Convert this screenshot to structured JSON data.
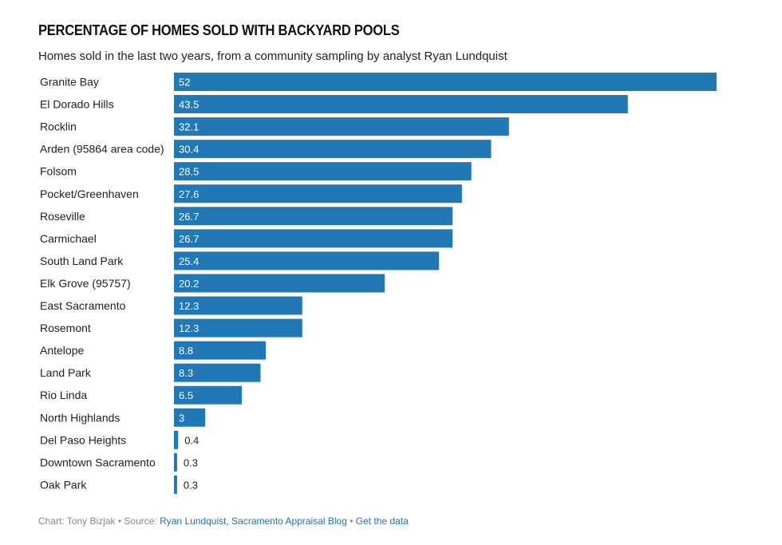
{
  "chart_data": {
    "type": "bar",
    "orientation": "horizontal",
    "title": "PERCENTAGE OF HOMES SOLD WITH BACKYARD POOLS",
    "subtitle": "Homes sold in the last two years, from a community sampling by analyst Ryan Lundquist",
    "bar_color": "#2178b5",
    "xlim": [
      0,
      52
    ],
    "categories": [
      "Granite Bay",
      "El Dorado Hills",
      "Rocklin",
      "Arden (95864 area code)",
      "Folsom",
      "Pocket/Greenhaven",
      "Roseville",
      "Carmichael",
      "South Land Park",
      "Elk Grove (95757)",
      "East Sacramento",
      "Rosemont",
      "Antelope",
      "Land Park",
      "Rio Linda",
      "North Highlands",
      "Del Paso Heights",
      "Downtown Sacramento",
      "Oak Park"
    ],
    "values": [
      52,
      43.5,
      32.1,
      30.4,
      28.5,
      27.6,
      26.7,
      26.7,
      25.4,
      20.2,
      12.3,
      12.3,
      8.8,
      8.3,
      6.5,
      3,
      0.4,
      0.3,
      0.3
    ],
    "value_labels": [
      "52",
      "43.5",
      "32.1",
      "30.4",
      "28.5",
      "27.6",
      "26.7",
      "26.7",
      "25.4",
      "20.2",
      "12.3",
      "12.3",
      "8.8",
      "8.3",
      "6.5",
      "3",
      "0.4",
      "0.3",
      "0.3"
    ]
  },
  "footer": {
    "credit": "Chart: Tony Bizjak",
    "source_prefix": "Source:",
    "source_link": "Ryan Lundquist, Sacramento Appraisal Blog",
    "data_link": "Get the data"
  }
}
